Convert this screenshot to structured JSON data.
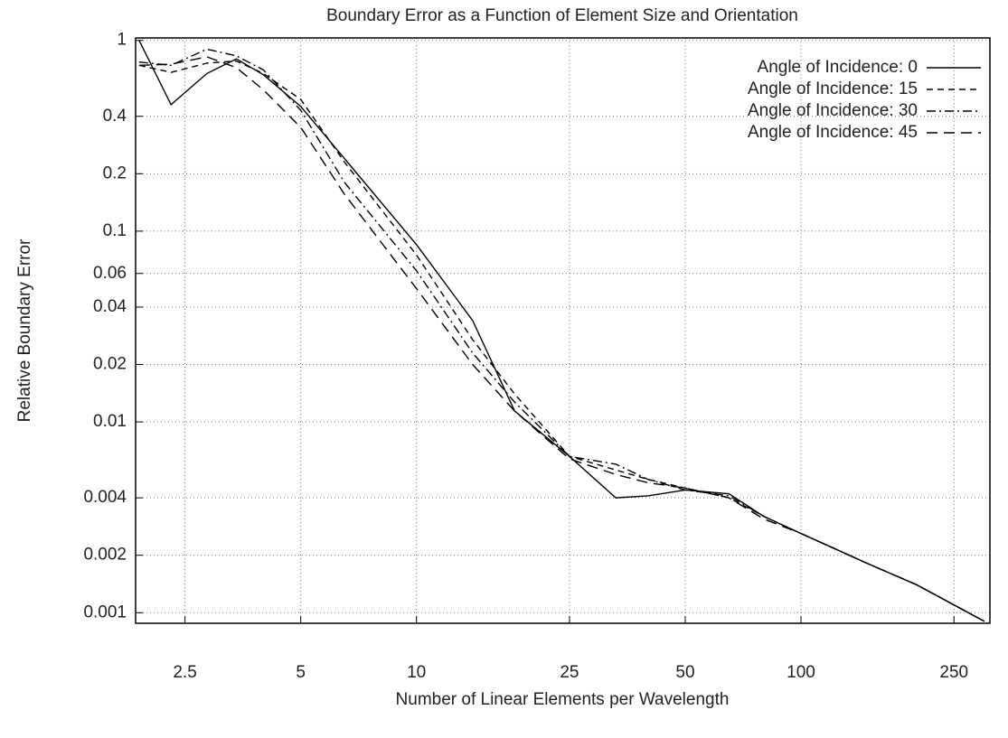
{
  "chart_data": {
    "type": "line",
    "title": "Boundary Error as a Function of Element Size and Orientation",
    "xlabel": "Number of Linear Elements per Wavelength",
    "ylabel": "Relative Boundary Error",
    "xscale": "log",
    "yscale": "log",
    "grid": true,
    "legend": "upper right",
    "xlim": [
      1.86,
      310
    ],
    "ylim": [
      0.00088,
      1.03
    ],
    "xticks": [
      2.5,
      5,
      10,
      25,
      50,
      100,
      250
    ],
    "yticks": [
      1,
      0.4,
      0.2,
      0.1,
      0.06,
      0.04,
      0.02,
      0.01,
      0.004,
      0.002,
      0.001
    ],
    "x": [
      1.9,
      2.3,
      2.85,
      3.4,
      4.0,
      5,
      6.5,
      10,
      14,
      18,
      25,
      33,
      40,
      50,
      65,
      80,
      100,
      150,
      200,
      300
    ],
    "series": [
      {
        "name": "Angle of Incidence: 0",
        "color": "#000000",
        "line_style": "solid",
        "values": [
          1.0,
          0.46,
          0.67,
          0.8,
          0.66,
          0.45,
          0.24,
          0.085,
          0.034,
          0.0114,
          0.0066,
          0.004,
          0.0041,
          0.0044,
          0.0042,
          0.0032,
          0.0026,
          0.0018,
          0.0014,
          0.0009
        ]
      },
      {
        "name": "Angle of Incidence: 15",
        "color": "#000000",
        "line_style": "dashed",
        "values": [
          0.74,
          0.68,
          0.76,
          0.78,
          0.67,
          0.49,
          0.23,
          0.075,
          0.027,
          0.014,
          0.0066,
          0.0056,
          0.005,
          0.0045,
          0.004,
          0.0032,
          0.0026,
          0.0018,
          0.0014,
          0.0009
        ]
      },
      {
        "name": "Angle of Incidence: 30",
        "color": "#000000",
        "line_style": "dashdot",
        "values": [
          0.77,
          0.74,
          0.9,
          0.83,
          0.7,
          0.43,
          0.18,
          0.062,
          0.023,
          0.0127,
          0.0066,
          0.006,
          0.005,
          0.0044,
          0.0041,
          0.0032,
          0.0026,
          0.0018,
          0.0014,
          0.0009
        ]
      },
      {
        "name": "Angle of Incidence: 45",
        "color": "#000000",
        "line_style": "longdash",
        "values": [
          0.74,
          0.75,
          0.82,
          0.72,
          0.55,
          0.35,
          0.156,
          0.05,
          0.02,
          0.0114,
          0.0064,
          0.0053,
          0.0048,
          0.0045,
          0.004,
          0.0031,
          0.0026,
          0.0018,
          0.0014,
          0.0009
        ]
      }
    ]
  }
}
